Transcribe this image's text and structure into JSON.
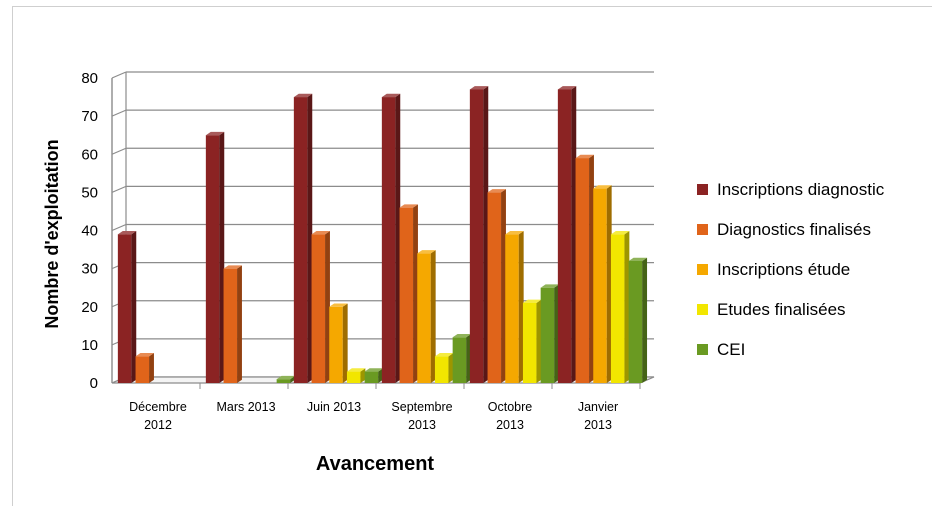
{
  "chart_data": {
    "type": "bar",
    "xlabel": "Avancement",
    "ylabel": "Nombre d'exploitation",
    "ylim": [
      0,
      80
    ],
    "yticks": [
      0,
      10,
      20,
      30,
      40,
      50,
      60,
      70,
      80
    ],
    "grid": true,
    "legend_position": "right",
    "categories": [
      [
        "Décembre",
        "2012"
      ],
      [
        "Mars 2013"
      ],
      [
        "Juin 2013"
      ],
      [
        "Septembre",
        "2013"
      ],
      [
        "Octobre",
        "2013"
      ],
      [
        "Janvier",
        "2013"
      ]
    ],
    "series": [
      {
        "name": "Inscriptions diagnostic",
        "color": "#8b2323",
        "values": [
          39,
          65,
          75,
          75,
          77,
          77
        ]
      },
      {
        "name": "Diagnostics finalisés",
        "color": "#e0641a",
        "values": [
          7,
          30,
          39,
          46,
          50,
          59
        ]
      },
      {
        "name": "Inscriptions étude",
        "color": "#f5a800",
        "values": [
          0,
          0,
          20,
          34,
          39,
          51
        ]
      },
      {
        "name": "Etudes finalisées",
        "color": "#f2e600",
        "values": [
          0,
          0,
          3,
          7,
          21,
          39
        ]
      },
      {
        "name": "CEI",
        "color": "#6a9a22",
        "values": [
          0,
          1,
          3,
          12,
          25,
          32
        ]
      }
    ]
  }
}
